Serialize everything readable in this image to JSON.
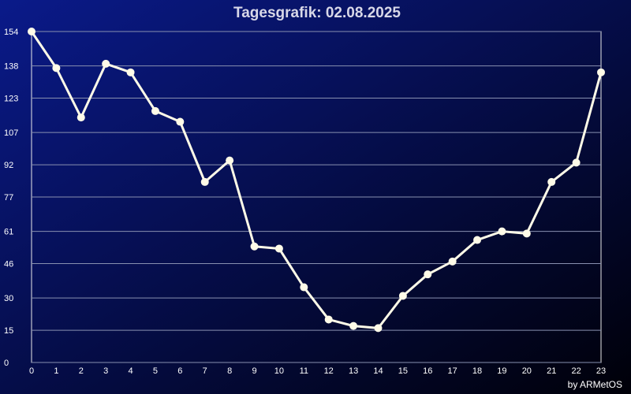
{
  "chart_data": {
    "type": "line",
    "title": "Tagesgrafik: 02.08.2025",
    "credit": "by ARMetOS",
    "x": [
      0,
      1,
      2,
      3,
      4,
      5,
      6,
      7,
      8,
      9,
      10,
      11,
      12,
      13,
      14,
      15,
      16,
      17,
      18,
      19,
      20,
      21,
      22,
      23
    ],
    "values": [
      154,
      137,
      114,
      139,
      135,
      117,
      112,
      84,
      94,
      54,
      53,
      35,
      20,
      17,
      16,
      31,
      41,
      47,
      57,
      61,
      60,
      84,
      93,
      135
    ],
    "color": "#fffbe8",
    "xlim": [
      0,
      23
    ],
    "xticks": [
      0,
      1,
      2,
      3,
      4,
      5,
      6,
      7,
      8,
      9,
      10,
      11,
      12,
      13,
      14,
      15,
      16,
      17,
      18,
      19,
      20,
      21,
      22,
      23
    ],
    "ylim": [
      0,
      154
    ],
    "yticks": [
      0,
      15,
      30,
      46,
      61,
      77,
      92,
      107,
      123,
      138,
      154
    ],
    "grid": true
  }
}
